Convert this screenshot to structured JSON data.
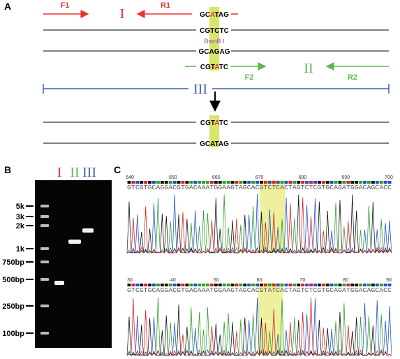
{
  "panel_a": {
    "label": "A",
    "f1": "F1",
    "r1": "R1",
    "region_1": "I",
    "top_seq": [
      "GC",
      "A",
      "TAG"
    ],
    "line2_seq": "CGTCTC",
    "enzyme": "BsmB I",
    "line3_seq": "GCAGAG",
    "mut_seq": [
      "CGT",
      "A",
      "TC"
    ],
    "f2": "F2",
    "region_2": "II",
    "r2": "R2",
    "region_3": "III",
    "result_seq_1": [
      "CGT",
      "A",
      "TC"
    ],
    "result_seq_2": [
      "GCATAG"
    ]
  },
  "panel_b": {
    "label": "B",
    "lanes": [
      "I",
      "II",
      "III"
    ],
    "ladder": [
      "5k",
      "3k",
      "2k",
      "1k",
      "750bp",
      "500bp",
      "250bp",
      "100bp"
    ]
  },
  "panel_c": {
    "label": "C",
    "traces": [
      {
        "ticks": [
          640,
          650,
          660,
          670,
          680,
          690,
          700
        ],
        "sequence": "GTCGTGCAGGACGTGACAAATGGAAGTAGCACGTCTCACTAGTCTCGTGCAGATGGACAGCACC"
      },
      {
        "ticks": [
          30,
          40,
          50,
          60,
          70,
          80,
          90
        ],
        "sequence": "GTCGTGCAGGACGTGACAAATGGAAGTAGCACGTATCACTAGTCTCGTGCAGATGGACAGCACC"
      }
    ]
  }
}
